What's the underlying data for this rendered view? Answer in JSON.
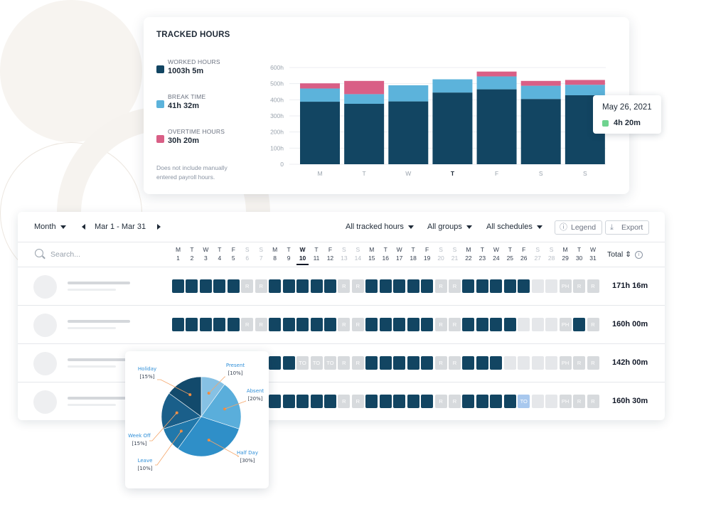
{
  "tracked": {
    "title": "TRACKED HOURS",
    "legend": [
      {
        "label": "WORKED HOURS",
        "value": "1003h 5m",
        "color": "#124562"
      },
      {
        "label": "BREAK TIME",
        "value": "41h 32m",
        "color": "#5cb3db"
      },
      {
        "label": "OVERTIME HOURS",
        "value": "30h 20m",
        "color": "#d95f86"
      }
    ],
    "note": "Does not include manually entered payroll hours."
  },
  "chart_data": [
    {
      "type": "bar",
      "stacked": true,
      "categories": [
        "M",
        "T",
        "W",
        "T",
        "F",
        "S",
        "S"
      ],
      "highlight_category_index": 3,
      "y_ticks": [
        "0",
        "100h",
        "200h",
        "300h",
        "400h",
        "500h",
        "600h"
      ],
      "ylim": [
        0,
        600
      ],
      "grid": true,
      "series": [
        {
          "name": "WORKED HOURS",
          "color": "#124562",
          "values": [
            388,
            375,
            390,
            445,
            465,
            405,
            428
          ]
        },
        {
          "name": "BREAK TIME",
          "color": "#5cb3db",
          "values": [
            82,
            60,
            100,
            82,
            80,
            82,
            65
          ]
        },
        {
          "name": "OVERTIME HOURS",
          "color": "#d95f86",
          "values": [
            32,
            82,
            0,
            0,
            30,
            30,
            30
          ]
        }
      ]
    },
    {
      "type": "pie",
      "slices": [
        {
          "label": "Present",
          "pct_text": "[10%]",
          "value": 10,
          "color": "#86c1e4"
        },
        {
          "label": "Absent",
          "pct_text": "[20%]",
          "value": 20,
          "color": "#5aaedb"
        },
        {
          "label": "Half Day",
          "pct_text": "[30%]",
          "value": 30,
          "color": "#2f8fc8"
        },
        {
          "label": "Leave",
          "pct_text": "[10%]",
          "value": 10,
          "color": "#2178ab"
        },
        {
          "label": "Week Off",
          "pct_text": "[15%]",
          "value": 15,
          "color": "#1a5f8a"
        },
        {
          "label": "Holiday",
          "pct_text": "[15%]",
          "value": 15,
          "color": "#124a6c"
        }
      ]
    }
  ],
  "tooltip": {
    "date": "May 26, 2021",
    "value": "4h 20m",
    "color": "#6fd38f"
  },
  "toolbar": {
    "period": "Month",
    "range": "Mar 1  - Mar 31",
    "filter_hours": "All tracked hours",
    "filter_groups": "All groups",
    "filter_schedules": "All schedules",
    "legend_btn": "Legend",
    "export_btn": "Export"
  },
  "table": {
    "search_placeholder": "Search...",
    "total_header": "Total",
    "today_index": 9,
    "days": [
      {
        "l": "M",
        "n": "1",
        "we": false
      },
      {
        "l": "T",
        "n": "2",
        "we": false
      },
      {
        "l": "W",
        "n": "3",
        "we": false
      },
      {
        "l": "T",
        "n": "4",
        "we": false
      },
      {
        "l": "F",
        "n": "5",
        "we": false
      },
      {
        "l": "S",
        "n": "6",
        "we": true
      },
      {
        "l": "S",
        "n": "7",
        "we": true
      },
      {
        "l": "M",
        "n": "8",
        "we": false
      },
      {
        "l": "T",
        "n": "9",
        "we": false
      },
      {
        "l": "W",
        "n": "10",
        "we": false
      },
      {
        "l": "T",
        "n": "11",
        "we": false
      },
      {
        "l": "F",
        "n": "12",
        "we": false
      },
      {
        "l": "S",
        "n": "13",
        "we": true
      },
      {
        "l": "S",
        "n": "14",
        "we": true
      },
      {
        "l": "M",
        "n": "15",
        "we": false
      },
      {
        "l": "T",
        "n": "16",
        "we": false
      },
      {
        "l": "W",
        "n": "17",
        "we": false
      },
      {
        "l": "T",
        "n": "18",
        "we": false
      },
      {
        "l": "F",
        "n": "19",
        "we": false
      },
      {
        "l": "S",
        "n": "20",
        "we": true
      },
      {
        "l": "S",
        "n": "21",
        "we": true
      },
      {
        "l": "M",
        "n": "22",
        "we": false
      },
      {
        "l": "T",
        "n": "23",
        "we": false
      },
      {
        "l": "W",
        "n": "24",
        "we": false
      },
      {
        "l": "T",
        "n": "25",
        "we": false
      },
      {
        "l": "F",
        "n": "26",
        "we": false
      },
      {
        "l": "S",
        "n": "27",
        "we": true
      },
      {
        "l": "S",
        "n": "28",
        "we": true
      },
      {
        "l": "M",
        "n": "29",
        "we": false
      },
      {
        "l": "T",
        "n": "30",
        "we": false
      },
      {
        "l": "W",
        "n": "31",
        "we": false
      }
    ],
    "rows": [
      {
        "total": "171h 16m",
        "cells": [
          "W",
          "W",
          "W",
          "W",
          "W",
          "R",
          "R",
          "W",
          "W",
          "W",
          "W",
          "W",
          "R",
          "R",
          "W",
          "W",
          "W",
          "W",
          "W",
          "R",
          "R",
          "W",
          "W",
          "W",
          "W",
          "W",
          "E",
          "E",
          "PH",
          "R",
          "R"
        ]
      },
      {
        "total": "160h 00m",
        "cells": [
          "W",
          "W",
          "W",
          "W",
          "W",
          "R",
          "R",
          "W",
          "W",
          "W",
          "W",
          "W",
          "R",
          "R",
          "W",
          "W",
          "W",
          "W",
          "W",
          "R",
          "R",
          "W",
          "W",
          "W",
          "W",
          "E",
          "E",
          "E",
          "PH",
          "W",
          "R"
        ]
      },
      {
        "total": "142h 00m",
        "cells": [
          "W",
          "W",
          "W",
          "W",
          "W",
          "R",
          "R",
          "W",
          "W",
          "TO",
          "TO",
          "TO",
          "R",
          "R",
          "W",
          "W",
          "W",
          "W",
          "W",
          "R",
          "R",
          "W",
          "W",
          "W",
          "E",
          "E",
          "E",
          "E",
          "PH",
          "R",
          "R"
        ]
      },
      {
        "total": "160h 30m",
        "cells": [
          "W",
          "W",
          "W",
          "W",
          "W",
          "R",
          "R",
          "W",
          "W",
          "W",
          "W",
          "W",
          "R",
          "R",
          "W",
          "W",
          "W",
          "W",
          "W",
          "R",
          "R",
          "W",
          "W",
          "W",
          "W",
          "TOH",
          "E",
          "E",
          "PH",
          "R",
          "R"
        ]
      }
    ],
    "cell_labels": {
      "W": "",
      "R": "R",
      "E": "",
      "PH": "PH",
      "TO": "TO",
      "TOH": "TO"
    }
  }
}
